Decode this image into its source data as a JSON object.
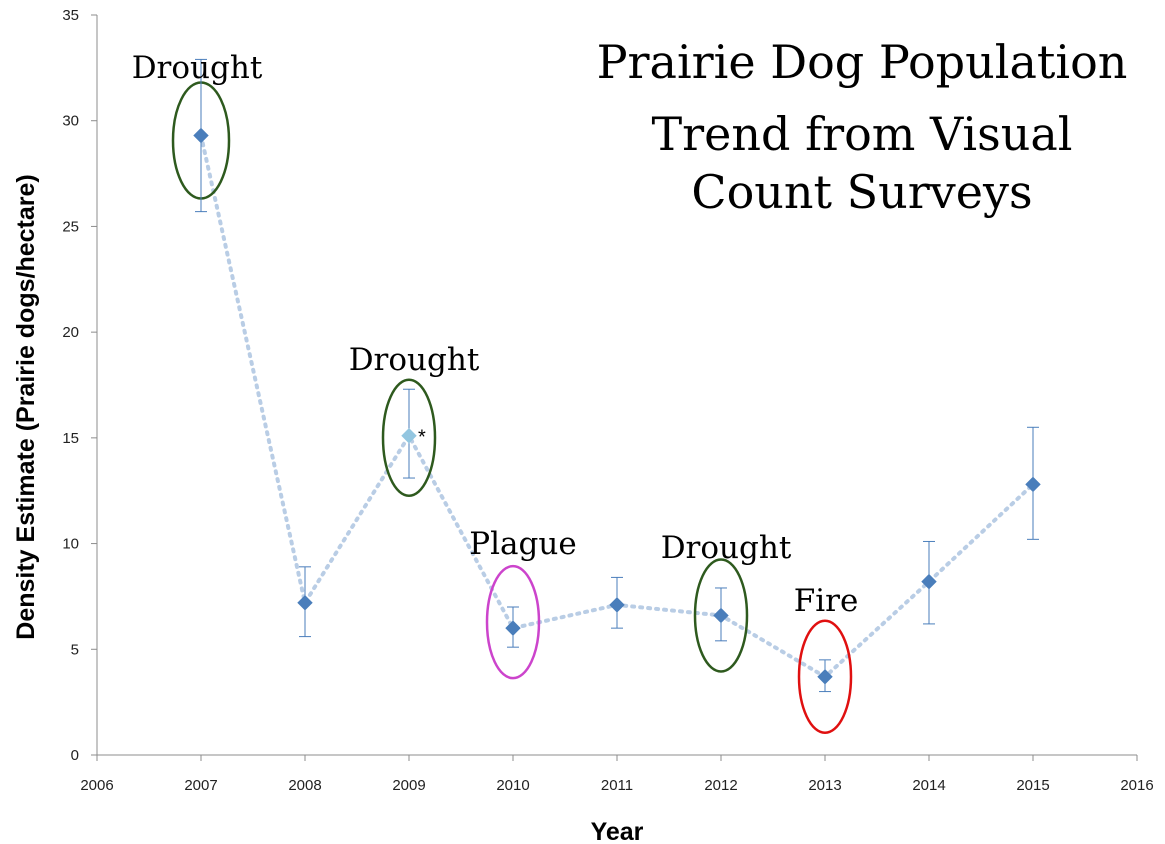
{
  "chart_data": {
    "type": "scatter",
    "title_lines": [
      "Prairie Dog Population",
      "Trend from Visual",
      "Count Surveys"
    ],
    "xlabel": "Year",
    "ylabel": "Density Estimate (Prairie dogs/hectare)",
    "xlim": [
      2006,
      2016
    ],
    "ylim": [
      0,
      35
    ],
    "x_ticks": [
      2006,
      2007,
      2008,
      2009,
      2010,
      2011,
      2012,
      2013,
      2014,
      2015,
      2016
    ],
    "y_ticks": [
      0,
      5,
      10,
      15,
      20,
      25,
      30,
      35
    ],
    "grid": false,
    "legend": "none",
    "connector_line": "dotted",
    "points": [
      {
        "x": 2007,
        "y": 29.3,
        "err_low": 25.7,
        "err_high": 32.9
      },
      {
        "x": 2008,
        "y": 7.2,
        "err_low": 5.6,
        "err_high": 8.9
      },
      {
        "x": 2009,
        "y": 15.1,
        "err_low": 13.1,
        "err_high": 17.3,
        "note": "*",
        "highlight": true
      },
      {
        "x": 2010,
        "y": 6.0,
        "err_low": 5.1,
        "err_high": 7.0
      },
      {
        "x": 2011,
        "y": 7.1,
        "err_low": 6.0,
        "err_high": 8.4
      },
      {
        "x": 2012,
        "y": 6.6,
        "err_low": 5.4,
        "err_high": 7.9
      },
      {
        "x": 2013,
        "y": 3.7,
        "err_low": 3.0,
        "err_high": 4.5
      },
      {
        "x": 2014,
        "y": 8.2,
        "err_low": 6.2,
        "err_high": 10.1
      },
      {
        "x": 2015,
        "y": 12.8,
        "err_low": 10.2,
        "err_high": 15.5
      }
    ],
    "annotations": [
      {
        "label": "Drought",
        "x": 2007,
        "color": "#2e5a1e"
      },
      {
        "label": "Drought",
        "x": 2009,
        "color": "#2e5a1e"
      },
      {
        "label": "Plague",
        "x": 2010,
        "color": "#cc44cc"
      },
      {
        "label": "Drought",
        "x": 2012,
        "color": "#2e5a1e"
      },
      {
        "label": "Fire",
        "x": 2013,
        "color": "#e01010"
      }
    ],
    "colors": {
      "marker": "#4a7ebb",
      "marker_highlight": "#93c6e0",
      "error_bar": "#4a7ebb",
      "line": "#b9cde5",
      "axis": "#8c8c8c"
    }
  }
}
